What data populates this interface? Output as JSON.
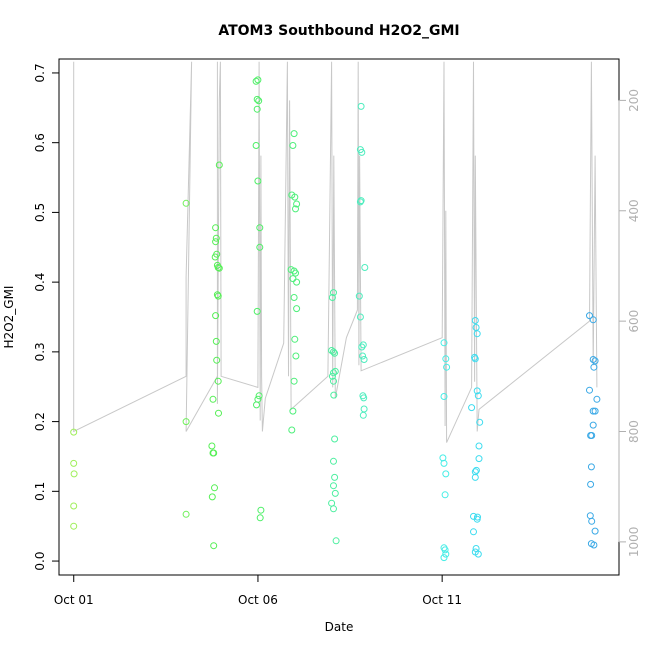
{
  "chart_data": {
    "type": "scatter",
    "title": "ATOM3 Southbound H2O2_GMI",
    "xlabel": "Date",
    "ylabel": "H2O2_GMI",
    "x_date_origin": "2017-10-01",
    "xlim_days": [
      -0.4,
      14.8
    ],
    "ylim": [
      -0.02,
      0.72
    ],
    "x_ticks": [
      {
        "day": 0,
        "label": "Oct 01"
      },
      {
        "day": 5,
        "label": "Oct 06"
      },
      {
        "day": 10,
        "label": "Oct 11"
      }
    ],
    "y_ticks": [
      {
        "value": 0.0,
        "label": "0.0"
      },
      {
        "value": 0.1,
        "label": "0.1"
      },
      {
        "value": 0.2,
        "label": "0.2"
      },
      {
        "value": 0.3,
        "label": "0.3"
      },
      {
        "value": 0.4,
        "label": "0.4"
      },
      {
        "value": 0.5,
        "label": "0.5"
      },
      {
        "value": 0.6,
        "label": "0.6"
      },
      {
        "value": 0.7,
        "label": "0.7"
      }
    ],
    "right_axis": {
      "reversed": true,
      "lim": [
        1060,
        125
      ],
      "color": "#b0b0b0",
      "ticks": [
        {
          "value": 200,
          "label": "200"
        },
        {
          "value": 400,
          "label": "400"
        },
        {
          "value": 600,
          "label": "600"
        },
        {
          "value": 800,
          "label": "800"
        },
        {
          "value": 1000,
          "label": "1000"
        }
      ]
    },
    "pressure_trace": {
      "color": "#c8c8c8",
      "points": [
        [
          0.0,
          780
        ],
        [
          0.0,
          130
        ],
        [
          0.0,
          800
        ],
        [
          3.05,
          700
        ],
        [
          3.05,
          520
        ],
        [
          3.2,
          130
        ],
        [
          3.05,
          800
        ],
        [
          3.9,
          700
        ],
        [
          3.9,
          130
        ],
        [
          3.9,
          750
        ],
        [
          3.95,
          200
        ],
        [
          3.98,
          130
        ],
        [
          4.0,
          700
        ],
        [
          5.0,
          720
        ],
        [
          5.03,
          130
        ],
        [
          5.06,
          780
        ],
        [
          5.08,
          300
        ],
        [
          5.1,
          700
        ],
        [
          5.12,
          800
        ],
        [
          5.2,
          740
        ],
        [
          5.7,
          640
        ],
        [
          5.8,
          130
        ],
        [
          5.83,
          700
        ],
        [
          5.86,
          200
        ],
        [
          5.9,
          760
        ],
        [
          6.9,
          700
        ],
        [
          7.0,
          130
        ],
        [
          7.03,
          720
        ],
        [
          7.06,
          300
        ],
        [
          7.1,
          740
        ],
        [
          7.4,
          630
        ],
        [
          7.7,
          580
        ],
        [
          7.72,
          130
        ],
        [
          7.74,
          680
        ],
        [
          7.76,
          300
        ],
        [
          7.8,
          690
        ],
        [
          10.0,
          630
        ],
        [
          10.05,
          130
        ],
        [
          10.08,
          790
        ],
        [
          10.1,
          400
        ],
        [
          10.12,
          820
        ],
        [
          10.8,
          720
        ],
        [
          10.85,
          130
        ],
        [
          10.88,
          710
        ],
        [
          10.9,
          300
        ],
        [
          10.95,
          800
        ],
        [
          11.0,
          760
        ],
        [
          14.0,
          600
        ],
        [
          14.05,
          130
        ],
        [
          14.1,
          680
        ],
        [
          14.15,
          300
        ],
        [
          14.2,
          720
        ]
      ]
    },
    "points": [
      {
        "x": 0.0,
        "y": 0.185,
        "c": "#9fef5a"
      },
      {
        "x": 0.0,
        "y": 0.14,
        "c": "#9fef5a"
      },
      {
        "x": 0.01,
        "y": 0.125,
        "c": "#9fef5a"
      },
      {
        "x": 0.0,
        "y": 0.079,
        "c": "#9fef5a"
      },
      {
        "x": 0.0,
        "y": 0.05,
        "c": "#9fef5a"
      },
      {
        "x": 3.05,
        "y": 0.513,
        "c": "#6ff05a"
      },
      {
        "x": 3.05,
        "y": 0.2,
        "c": "#6ff05a"
      },
      {
        "x": 3.05,
        "y": 0.067,
        "c": "#6ff05a"
      },
      {
        "x": 3.75,
        "y": 0.165,
        "c": "#55ef55"
      },
      {
        "x": 3.78,
        "y": 0.155,
        "c": "#55ef55"
      },
      {
        "x": 3.8,
        "y": 0.155,
        "c": "#55ef55"
      },
      {
        "x": 3.82,
        "y": 0.105,
        "c": "#55ef55"
      },
      {
        "x": 3.76,
        "y": 0.092,
        "c": "#55ef55"
      },
      {
        "x": 3.8,
        "y": 0.022,
        "c": "#55ef55"
      },
      {
        "x": 3.78,
        "y": 0.232,
        "c": "#55ef55"
      },
      {
        "x": 3.85,
        "y": 0.478,
        "c": "#55ef55"
      },
      {
        "x": 3.87,
        "y": 0.463,
        "c": "#55ef55"
      },
      {
        "x": 3.85,
        "y": 0.458,
        "c": "#55ef55"
      },
      {
        "x": 3.88,
        "y": 0.44,
        "c": "#55ef55"
      },
      {
        "x": 3.84,
        "y": 0.436,
        "c": "#55ef55"
      },
      {
        "x": 3.9,
        "y": 0.424,
        "c": "#55ef55"
      },
      {
        "x": 3.92,
        "y": 0.421,
        "c": "#55ef55"
      },
      {
        "x": 3.95,
        "y": 0.42,
        "c": "#55ef55"
      },
      {
        "x": 3.9,
        "y": 0.382,
        "c": "#55ef55"
      },
      {
        "x": 3.92,
        "y": 0.38,
        "c": "#55ef55"
      },
      {
        "x": 3.85,
        "y": 0.352,
        "c": "#55ef55"
      },
      {
        "x": 3.87,
        "y": 0.315,
        "c": "#55ef55"
      },
      {
        "x": 3.88,
        "y": 0.288,
        "c": "#55ef55"
      },
      {
        "x": 3.92,
        "y": 0.258,
        "c": "#55ef55"
      },
      {
        "x": 3.93,
        "y": 0.212,
        "c": "#55ef55"
      },
      {
        "x": 3.95,
        "y": 0.568,
        "c": "#55ef55"
      },
      {
        "x": 4.95,
        "y": 0.688,
        "c": "#4def66"
      },
      {
        "x": 5.0,
        "y": 0.69,
        "c": "#4def66"
      },
      {
        "x": 4.98,
        "y": 0.662,
        "c": "#4def66"
      },
      {
        "x": 5.02,
        "y": 0.66,
        "c": "#4def66"
      },
      {
        "x": 4.98,
        "y": 0.648,
        "c": "#4def66"
      },
      {
        "x": 4.95,
        "y": 0.596,
        "c": "#4def66"
      },
      {
        "x": 5.0,
        "y": 0.545,
        "c": "#4def66"
      },
      {
        "x": 5.05,
        "y": 0.478,
        "c": "#4def66"
      },
      {
        "x": 5.05,
        "y": 0.45,
        "c": "#4def66"
      },
      {
        "x": 4.98,
        "y": 0.358,
        "c": "#4def66"
      },
      {
        "x": 5.03,
        "y": 0.237,
        "c": "#4def66"
      },
      {
        "x": 5.0,
        "y": 0.232,
        "c": "#4def66"
      },
      {
        "x": 4.96,
        "y": 0.224,
        "c": "#4def66"
      },
      {
        "x": 5.08,
        "y": 0.073,
        "c": "#4def66"
      },
      {
        "x": 5.06,
        "y": 0.062,
        "c": "#4def66"
      },
      {
        "x": 5.98,
        "y": 0.613,
        "c": "#4def7a"
      },
      {
        "x": 5.95,
        "y": 0.596,
        "c": "#4def7a"
      },
      {
        "x": 5.92,
        "y": 0.525,
        "c": "#4def7a"
      },
      {
        "x": 6.0,
        "y": 0.522,
        "c": "#4def7a"
      },
      {
        "x": 6.05,
        "y": 0.512,
        "c": "#4def7a"
      },
      {
        "x": 6.02,
        "y": 0.505,
        "c": "#4def7a"
      },
      {
        "x": 5.9,
        "y": 0.418,
        "c": "#4def7a"
      },
      {
        "x": 5.98,
        "y": 0.416,
        "c": "#4def7a"
      },
      {
        "x": 6.02,
        "y": 0.413,
        "c": "#4def7a"
      },
      {
        "x": 5.95,
        "y": 0.405,
        "c": "#4def7a"
      },
      {
        "x": 6.05,
        "y": 0.4,
        "c": "#4def7a"
      },
      {
        "x": 5.98,
        "y": 0.378,
        "c": "#4def7a"
      },
      {
        "x": 6.05,
        "y": 0.362,
        "c": "#4def7a"
      },
      {
        "x": 6.0,
        "y": 0.318,
        "c": "#4def7a"
      },
      {
        "x": 6.03,
        "y": 0.294,
        "c": "#4def7a"
      },
      {
        "x": 5.98,
        "y": 0.258,
        "c": "#4def7a"
      },
      {
        "x": 5.95,
        "y": 0.215,
        "c": "#4def7a"
      },
      {
        "x": 5.92,
        "y": 0.188,
        "c": "#4def7a"
      },
      {
        "x": 7.05,
        "y": 0.385,
        "c": "#4defa0"
      },
      {
        "x": 7.02,
        "y": 0.378,
        "c": "#4defa0"
      },
      {
        "x": 7.0,
        "y": 0.302,
        "c": "#4defa0"
      },
      {
        "x": 7.05,
        "y": 0.3,
        "c": "#4defa0"
      },
      {
        "x": 7.08,
        "y": 0.298,
        "c": "#4defa0"
      },
      {
        "x": 7.1,
        "y": 0.272,
        "c": "#4defa0"
      },
      {
        "x": 7.05,
        "y": 0.27,
        "c": "#4defa0"
      },
      {
        "x": 7.02,
        "y": 0.265,
        "c": "#4defa0"
      },
      {
        "x": 7.05,
        "y": 0.258,
        "c": "#4defa0"
      },
      {
        "x": 7.06,
        "y": 0.238,
        "c": "#4defa0"
      },
      {
        "x": 7.08,
        "y": 0.175,
        "c": "#4defa0"
      },
      {
        "x": 7.05,
        "y": 0.143,
        "c": "#4defa0"
      },
      {
        "x": 7.08,
        "y": 0.12,
        "c": "#4defa0"
      },
      {
        "x": 7.05,
        "y": 0.108,
        "c": "#4defa0"
      },
      {
        "x": 7.1,
        "y": 0.097,
        "c": "#4defa0"
      },
      {
        "x": 7.0,
        "y": 0.083,
        "c": "#4defa0"
      },
      {
        "x": 7.05,
        "y": 0.075,
        "c": "#4defa0"
      },
      {
        "x": 7.12,
        "y": 0.029,
        "c": "#4defa0"
      },
      {
        "x": 7.8,
        "y": 0.652,
        "c": "#4dedbe"
      },
      {
        "x": 7.78,
        "y": 0.59,
        "c": "#4dedbe"
      },
      {
        "x": 7.82,
        "y": 0.586,
        "c": "#4dedbe"
      },
      {
        "x": 7.8,
        "y": 0.517,
        "c": "#4dedbe"
      },
      {
        "x": 7.78,
        "y": 0.515,
        "c": "#4dedbe"
      },
      {
        "x": 7.9,
        "y": 0.421,
        "c": "#4dedbe"
      },
      {
        "x": 7.75,
        "y": 0.38,
        "c": "#4dedbe"
      },
      {
        "x": 7.78,
        "y": 0.35,
        "c": "#4dedbe"
      },
      {
        "x": 7.82,
        "y": 0.307,
        "c": "#4dedbe"
      },
      {
        "x": 7.86,
        "y": 0.31,
        "c": "#4dedbe"
      },
      {
        "x": 7.84,
        "y": 0.294,
        "c": "#4dedbe"
      },
      {
        "x": 7.88,
        "y": 0.289,
        "c": "#4dedbe"
      },
      {
        "x": 7.85,
        "y": 0.237,
        "c": "#4dedbe"
      },
      {
        "x": 7.87,
        "y": 0.234,
        "c": "#4dedbe"
      },
      {
        "x": 7.88,
        "y": 0.218,
        "c": "#4dedbe"
      },
      {
        "x": 7.86,
        "y": 0.209,
        "c": "#4dedbe"
      },
      {
        "x": 10.05,
        "y": 0.313,
        "c": "#45ede6"
      },
      {
        "x": 10.1,
        "y": 0.29,
        "c": "#45ede6"
      },
      {
        "x": 10.12,
        "y": 0.278,
        "c": "#45ede6"
      },
      {
        "x": 10.05,
        "y": 0.236,
        "c": "#45ede6"
      },
      {
        "x": 10.02,
        "y": 0.148,
        "c": "#45ede6"
      },
      {
        "x": 10.05,
        "y": 0.14,
        "c": "#45ede6"
      },
      {
        "x": 10.1,
        "y": 0.125,
        "c": "#45ede6"
      },
      {
        "x": 10.08,
        "y": 0.095,
        "c": "#45ede6"
      },
      {
        "x": 10.05,
        "y": 0.019,
        "c": "#45ede6"
      },
      {
        "x": 10.08,
        "y": 0.016,
        "c": "#45ede6"
      },
      {
        "x": 10.1,
        "y": 0.01,
        "c": "#45ede6"
      },
      {
        "x": 10.05,
        "y": 0.005,
        "c": "#45ede6"
      },
      {
        "x": 10.9,
        "y": 0.345,
        "c": "#3ddcef"
      },
      {
        "x": 10.92,
        "y": 0.335,
        "c": "#3ddcef"
      },
      {
        "x": 10.95,
        "y": 0.326,
        "c": "#3ddcef"
      },
      {
        "x": 10.88,
        "y": 0.292,
        "c": "#3ddcef"
      },
      {
        "x": 10.9,
        "y": 0.29,
        "c": "#3ddcef"
      },
      {
        "x": 10.95,
        "y": 0.244,
        "c": "#3ddcef"
      },
      {
        "x": 10.98,
        "y": 0.237,
        "c": "#3ddcef"
      },
      {
        "x": 10.8,
        "y": 0.22,
        "c": "#3ddcef"
      },
      {
        "x": 11.02,
        "y": 0.199,
        "c": "#3ddcef"
      },
      {
        "x": 11.0,
        "y": 0.165,
        "c": "#3ddcef"
      },
      {
        "x": 11.0,
        "y": 0.147,
        "c": "#3ddcef"
      },
      {
        "x": 10.93,
        "y": 0.13,
        "c": "#3ddcef"
      },
      {
        "x": 10.9,
        "y": 0.128,
        "c": "#3ddcef"
      },
      {
        "x": 10.9,
        "y": 0.12,
        "c": "#3ddcef"
      },
      {
        "x": 10.85,
        "y": 0.064,
        "c": "#3ddcef"
      },
      {
        "x": 10.96,
        "y": 0.063,
        "c": "#3ddcef"
      },
      {
        "x": 10.95,
        "y": 0.06,
        "c": "#3ddcef"
      },
      {
        "x": 10.85,
        "y": 0.042,
        "c": "#3ddcef"
      },
      {
        "x": 10.92,
        "y": 0.018,
        "c": "#3ddcef"
      },
      {
        "x": 10.9,
        "y": 0.013,
        "c": "#3ddcef"
      },
      {
        "x": 10.98,
        "y": 0.01,
        "c": "#3ddcef"
      },
      {
        "x": 14.0,
        "y": 0.352,
        "c": "#3aa9e6"
      },
      {
        "x": 14.1,
        "y": 0.346,
        "c": "#3aa9e6"
      },
      {
        "x": 14.1,
        "y": 0.289,
        "c": "#3aa9e6"
      },
      {
        "x": 14.15,
        "y": 0.287,
        "c": "#3aa9e6"
      },
      {
        "x": 14.12,
        "y": 0.278,
        "c": "#3aa9e6"
      },
      {
        "x": 14.0,
        "y": 0.245,
        "c": "#3aa9e6"
      },
      {
        "x": 14.2,
        "y": 0.232,
        "c": "#3aa9e6"
      },
      {
        "x": 14.1,
        "y": 0.215,
        "c": "#3aa9e6"
      },
      {
        "x": 14.15,
        "y": 0.215,
        "c": "#3aa9e6"
      },
      {
        "x": 14.1,
        "y": 0.195,
        "c": "#3aa9e6"
      },
      {
        "x": 14.03,
        "y": 0.18,
        "c": "#3aa9e6"
      },
      {
        "x": 14.06,
        "y": 0.18,
        "c": "#3aa9e6"
      },
      {
        "x": 14.05,
        "y": 0.135,
        "c": "#3aa9e6"
      },
      {
        "x": 14.03,
        "y": 0.11,
        "c": "#3aa9e6"
      },
      {
        "x": 14.02,
        "y": 0.065,
        "c": "#3aa9e6"
      },
      {
        "x": 14.06,
        "y": 0.057,
        "c": "#3aa9e6"
      },
      {
        "x": 14.15,
        "y": 0.043,
        "c": "#3aa9e6"
      },
      {
        "x": 14.05,
        "y": 0.025,
        "c": "#3aa9e6"
      },
      {
        "x": 14.12,
        "y": 0.023,
        "c": "#3aa9e6"
      }
    ]
  }
}
